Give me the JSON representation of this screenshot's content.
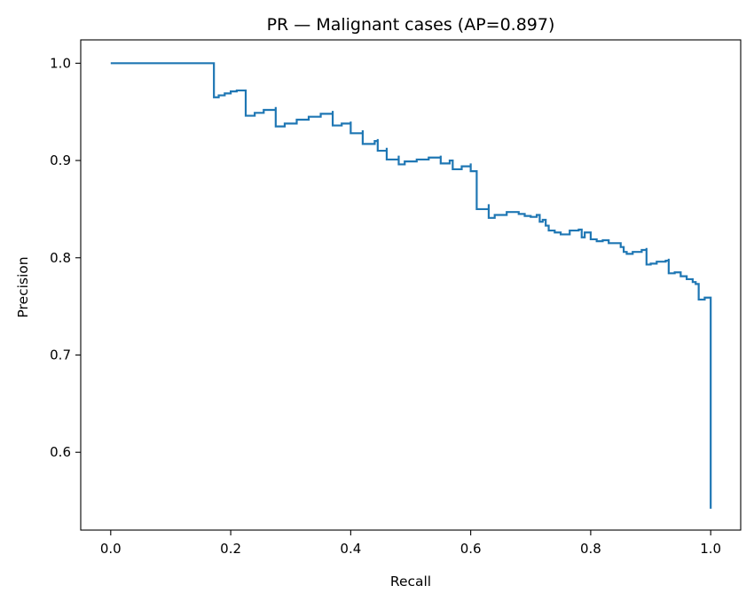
{
  "chart_data": {
    "type": "line",
    "title": "PR — Malignant cases (AP=0.897)",
    "xlabel": "Recall",
    "ylabel": "Precision",
    "xlim": [
      -0.05,
      1.05
    ],
    "ylim": [
      0.52,
      1.024
    ],
    "x_ticks": [
      0.0,
      0.2,
      0.4,
      0.6,
      0.8,
      1.0
    ],
    "x_tick_labels": [
      "0.0",
      "0.2",
      "0.4",
      "0.6",
      "0.8",
      "1.0"
    ],
    "y_ticks": [
      0.6,
      0.7,
      0.8,
      0.9,
      1.0
    ],
    "y_tick_labels": [
      "0.6",
      "0.7",
      "0.8",
      "0.9",
      "1.0"
    ],
    "grid": false,
    "series_color": "#1f77b4",
    "series": [
      {
        "step": "pre",
        "x": [
          0.0,
          0.172,
          0.172,
          0.18,
          0.19,
          0.2,
          0.21,
          0.225,
          0.225,
          0.24,
          0.255,
          0.275,
          0.275,
          0.29,
          0.31,
          0.33,
          0.35,
          0.37,
          0.37,
          0.385,
          0.4,
          0.4,
          0.42,
          0.42,
          0.44,
          0.445,
          0.445,
          0.46,
          0.46,
          0.48,
          0.48,
          0.49,
          0.49,
          0.51,
          0.53,
          0.55,
          0.55,
          0.565,
          0.57,
          0.57,
          0.585,
          0.6,
          0.6,
          0.61,
          0.61,
          0.63,
          0.63,
          0.64,
          0.66,
          0.68,
          0.69,
          0.7,
          0.71,
          0.715,
          0.72,
          0.725,
          0.73,
          0.74,
          0.75,
          0.765,
          0.78,
          0.785,
          0.79,
          0.8,
          0.81,
          0.82,
          0.83,
          0.84,
          0.85,
          0.855,
          0.86,
          0.87,
          0.885,
          0.893,
          0.893,
          0.9,
          0.91,
          0.925,
          0.93,
          0.93,
          0.94,
          0.95,
          0.96,
          0.97,
          0.975,
          0.98,
          0.98,
          0.99,
          0.99,
          1.0,
          1.0
        ],
        "y": [
          1.0,
          1.0,
          0.965,
          0.967,
          0.969,
          0.971,
          0.972,
          0.973,
          0.946,
          0.949,
          0.952,
          0.955,
          0.935,
          0.938,
          0.942,
          0.945,
          0.948,
          0.951,
          0.936,
          0.938,
          0.94,
          0.928,
          0.931,
          0.917,
          0.92,
          0.922,
          0.91,
          0.913,
          0.901,
          0.905,
          0.896,
          0.898,
          0.899,
          0.901,
          0.903,
          0.905,
          0.897,
          0.9,
          0.901,
          0.891,
          0.894,
          0.897,
          0.889,
          0.889,
          0.85,
          0.855,
          0.841,
          0.844,
          0.847,
          0.845,
          0.843,
          0.842,
          0.844,
          0.837,
          0.839,
          0.833,
          0.828,
          0.826,
          0.824,
          0.828,
          0.829,
          0.821,
          0.826,
          0.819,
          0.817,
          0.818,
          0.815,
          0.815,
          0.811,
          0.806,
          0.804,
          0.806,
          0.808,
          0.81,
          0.793,
          0.794,
          0.796,
          0.797,
          0.799,
          0.784,
          0.785,
          0.781,
          0.778,
          0.775,
          0.773,
          0.762,
          0.757,
          0.756,
          0.759,
          0.758,
          0.542
        ]
      }
    ]
  }
}
